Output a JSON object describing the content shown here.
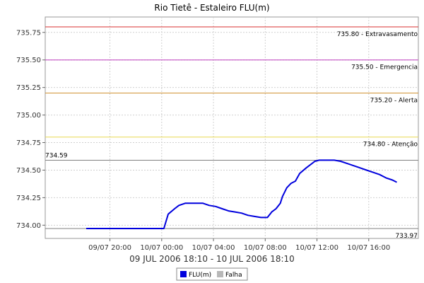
{
  "chart_data": {
    "type": "line",
    "title": "Rio Tietê - Estaleiro FLU(m)",
    "xlabel": "09 JUL 2006 18:10 - 10 JUL 2006 18:10",
    "ylabel": "",
    "grid": true,
    "legend_placement": "bottom-center",
    "x_range": [
      "2006-07-09 15:00",
      "2006-07-10 19:50"
    ],
    "ylim": [
      733.88,
      735.89
    ],
    "x_ticks": [
      {
        "x": "2006-07-09 20:00",
        "label": "09/07 20:00"
      },
      {
        "x": "2006-07-10 00:00",
        "label": "10/07 00:00"
      },
      {
        "x": "2006-07-10 04:00",
        "label": "10/07 04:00"
      },
      {
        "x": "2006-07-10 08:00",
        "label": "10/07 08:00"
      },
      {
        "x": "2006-07-10 12:00",
        "label": "10/07 12:00"
      },
      {
        "x": "2006-07-10 16:00",
        "label": "10/07 16:00"
      }
    ],
    "y_ticks": [
      {
        "y": 734.0,
        "label": "734.00"
      },
      {
        "y": 734.25,
        "label": "734.25"
      },
      {
        "y": 734.5,
        "label": "734.50"
      },
      {
        "y": 734.75,
        "label": "734.75"
      },
      {
        "y": 735.0,
        "label": "735.00"
      },
      {
        "y": 735.25,
        "label": "735.25"
      },
      {
        "y": 735.5,
        "label": "735.50"
      },
      {
        "y": 735.75,
        "label": "735.75"
      }
    ],
    "reference_lines": [
      {
        "value": 735.8,
        "label": "735.80 - Extravasamento",
        "color": "#d93030",
        "label_side": "right"
      },
      {
        "value": 735.5,
        "label": "735.50 - Emergencia",
        "color": "#c040c0",
        "label_side": "right"
      },
      {
        "value": 735.2,
        "label": "735.20 - Alerta",
        "color": "#d09030",
        "label_side": "right"
      },
      {
        "value": 734.8,
        "label": "734.80 - Atenção",
        "color": "#e8d850",
        "label_side": "right"
      },
      {
        "value": 734.59,
        "label": "734.59",
        "color": "#808080",
        "label_side": "left"
      },
      {
        "value": 733.97,
        "label": "733.97",
        "color": "#808080",
        "label_side": "right"
      }
    ],
    "series": [
      {
        "name": "FLU(m)",
        "color": "#0000dd",
        "points": [
          [
            "2006-07-09 18:10",
            733.97
          ],
          [
            "2006-07-10 00:10",
            733.97
          ],
          [
            "2006-07-10 00:30",
            734.1
          ],
          [
            "2006-07-10 01:00",
            734.15
          ],
          [
            "2006-07-10 01:20",
            734.18
          ],
          [
            "2006-07-10 01:50",
            734.2
          ],
          [
            "2006-07-10 03:10",
            734.2
          ],
          [
            "2006-07-10 03:40",
            734.18
          ],
          [
            "2006-07-10 04:10",
            734.17
          ],
          [
            "2006-07-10 04:40",
            734.15
          ],
          [
            "2006-07-10 05:10",
            734.13
          ],
          [
            "2006-07-10 05:40",
            734.12
          ],
          [
            "2006-07-10 06:10",
            734.11
          ],
          [
            "2006-07-10 06:40",
            734.09
          ],
          [
            "2006-07-10 07:10",
            734.08
          ],
          [
            "2006-07-10 07:40",
            734.07
          ],
          [
            "2006-07-10 08:10",
            734.07
          ],
          [
            "2006-07-10 08:30",
            734.12
          ],
          [
            "2006-07-10 08:50",
            734.15
          ],
          [
            "2006-07-10 09:10",
            734.2
          ],
          [
            "2006-07-10 09:20",
            734.26
          ],
          [
            "2006-07-10 09:40",
            734.34
          ],
          [
            "2006-07-10 10:00",
            734.38
          ],
          [
            "2006-07-10 10:20",
            734.4
          ],
          [
            "2006-07-10 10:40",
            734.47
          ],
          [
            "2006-07-10 11:10",
            734.52
          ],
          [
            "2006-07-10 11:30",
            734.55
          ],
          [
            "2006-07-10 11:50",
            734.58
          ],
          [
            "2006-07-10 12:10",
            734.59
          ],
          [
            "2006-07-10 13:20",
            734.59
          ],
          [
            "2006-07-10 13:50",
            734.58
          ],
          [
            "2006-07-10 14:20",
            734.56
          ],
          [
            "2006-07-10 14:50",
            734.54
          ],
          [
            "2006-07-10 15:20",
            734.52
          ],
          [
            "2006-07-10 15:50",
            734.5
          ],
          [
            "2006-07-10 16:20",
            734.48
          ],
          [
            "2006-07-10 16:50",
            734.46
          ],
          [
            "2006-07-10 17:20",
            734.43
          ],
          [
            "2006-07-10 17:50",
            734.41
          ],
          [
            "2006-07-10 18:10",
            734.39
          ]
        ]
      }
    ],
    "legend": [
      {
        "label": "FLU(m)",
        "color": "#0000dd"
      },
      {
        "label": "Falha",
        "color": "#b8b8b8"
      }
    ]
  }
}
